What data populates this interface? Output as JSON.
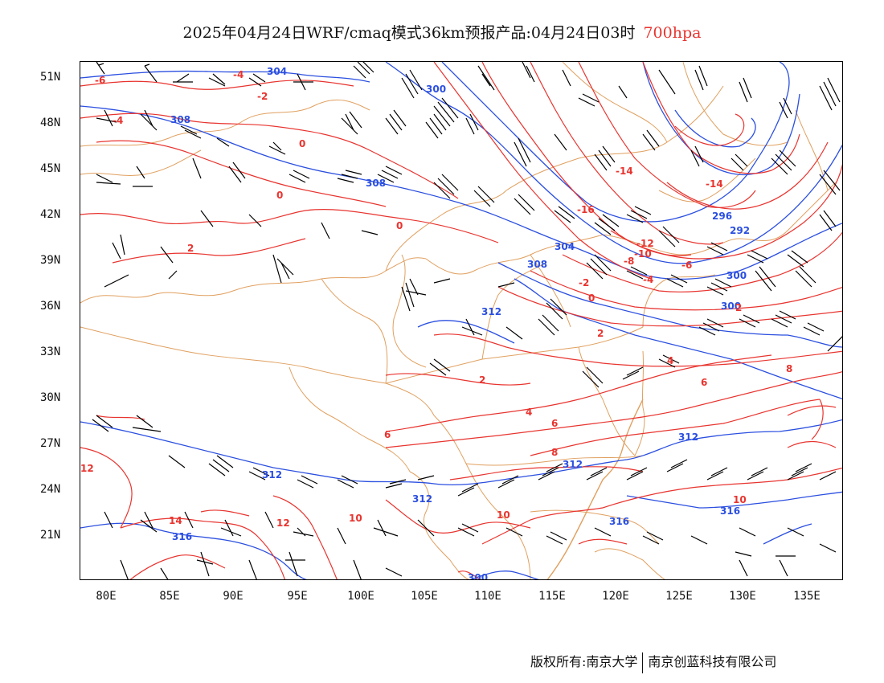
{
  "header": {
    "title": "2025年04月24日WRF/cmaq模式36km预报产品:04月24日03时",
    "level": "700hpa"
  },
  "axes": {
    "lat_labels": [
      "51N",
      "48N",
      "45N",
      "42N",
      "39N",
      "36N",
      "33N",
      "30N",
      "27N",
      "24N",
      "21N"
    ],
    "lon_labels": [
      "80E",
      "85E",
      "90E",
      "95E",
      "100E",
      "105E",
      "110E",
      "115E",
      "120E",
      "125E",
      "130E",
      "135E"
    ]
  },
  "contour_labels": {
    "height_dagpm": [
      "304",
      "300",
      "308",
      "308",
      "304",
      "308",
      "312",
      "296",
      "292",
      "300",
      "300",
      "312",
      "312",
      "312",
      "312",
      "316",
      "316",
      "316",
      "300"
    ],
    "temperature_c": [
      "-6",
      "-4",
      "-4",
      "-2",
      "0",
      "0",
      "0",
      "2",
      "-14",
      "-14",
      "-12",
      "-10",
      "-8",
      "-6",
      "-4",
      "-2",
      "0",
      "2",
      "2",
      "4",
      "4",
      "6",
      "6",
      "6",
      "8",
      "8",
      "10",
      "10",
      "10",
      "12",
      "12",
      "14",
      "-16",
      "2"
    ]
  },
  "footer": {
    "copyright": "版权所有:南京大学",
    "company": "南京创蓝科技有限公司"
  },
  "colors": {
    "height_contour": "#2b4fe0",
    "temperature_contour": "#e8342f",
    "boundaries": "#e0a060",
    "wind_barb": "#000000"
  }
}
